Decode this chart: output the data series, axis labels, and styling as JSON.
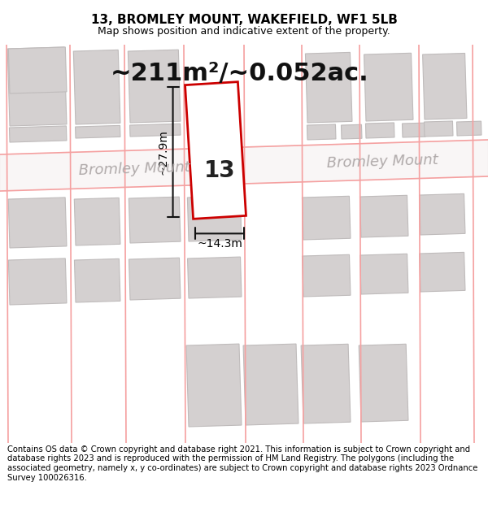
{
  "title": "13, BROMLEY MOUNT, WAKEFIELD, WF1 5LB",
  "subtitle": "Map shows position and indicative extent of the property.",
  "area_text": "~211m²/~0.052ac.",
  "number_label": "13",
  "dim_width": "~14.3m",
  "dim_height": "~27.9m",
  "street_label": "Bromley Mount",
  "footer": "Contains OS data © Crown copyright and database right 2021. This information is subject to Crown copyright and database rights 2023 and is reproduced with the permission of HM Land Registry. The polygons (including the associated geometry, namely x, y co-ordinates) are subject to Crown copyright and database rights 2023 Ordnance Survey 100026316.",
  "map_bg": "#ede9e9",
  "plot_color": "#ffffff",
  "plot_edge_color": "#cc0000",
  "dim_line_color": "#111111",
  "road_line_color": "#f5a0a0",
  "road_fill_color": "#f5f0f0",
  "building_color": "#d4d0d0",
  "building_edge": "#bfbbbb",
  "title_fontsize": 11,
  "subtitle_fontsize": 9,
  "area_fontsize": 22,
  "number_fontsize": 20,
  "dim_fontsize": 10,
  "street_fontsize": 13,
  "footer_fontsize": 7.2
}
